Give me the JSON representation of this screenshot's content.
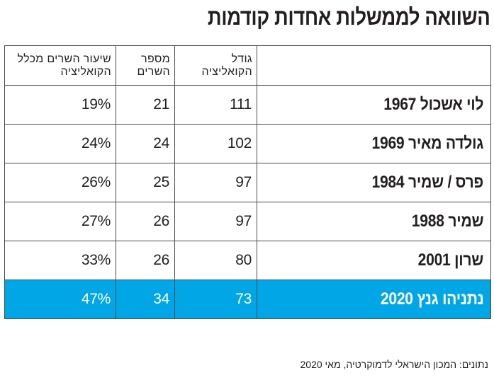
{
  "title": "השוואה לממשלות אחדות קודמות",
  "source": "נתונים: המכון הישראלי לדמוקרטיה, מאי 2020",
  "colors": {
    "highlight_row_background": "#00a6e6",
    "highlight_row_text": "#ffffff",
    "border": "#4a4a4a",
    "text": "#231f20"
  },
  "chart_data": {
    "type": "table",
    "title": "השוואה לממשלות אחדות קודמות",
    "columns": [
      "",
      "גודל הקואליציה",
      "מספר השרים",
      "שיעור השרים מכלל הקואליציה"
    ],
    "rows": [
      {
        "government": "לוי אשכול 1967",
        "coalition_size": "111",
        "ministers": "21",
        "ministers_share": "19%"
      },
      {
        "government": "גולדה מאיר 1969",
        "coalition_size": "102",
        "ministers": "24",
        "ministers_share": "24%"
      },
      {
        "government": "פרס / שמיר 1984",
        "coalition_size": "97",
        "ministers": "25",
        "ministers_share": "26%"
      },
      {
        "government": "שמיר 1988",
        "coalition_size": "97",
        "ministers": "26",
        "ministers_share": "27%"
      },
      {
        "government": "שרון 2001",
        "coalition_size": "80",
        "ministers": "26",
        "ministers_share": "33%"
      },
      {
        "government": "נתניהו גנץ 2020",
        "coalition_size": "73",
        "ministers": "34",
        "ministers_share": "47%",
        "highlighted": true
      }
    ],
    "source": "נתונים: המכון הישראלי לדמוקרטיה, מאי 2020"
  }
}
